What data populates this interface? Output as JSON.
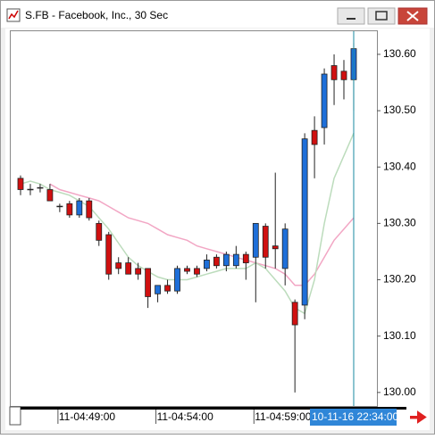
{
  "chart_data": {
    "type": "candlestick",
    "title": "S.FB - Facebook, Inc., 30 Sec",
    "categories": [
      null,
      null,
      null,
      null,
      "11-04:49:00",
      null,
      null,
      null,
      null,
      null,
      null,
      null,
      null,
      null,
      "11-04:54:00",
      null,
      null,
      null,
      null,
      null,
      null,
      null,
      null,
      null,
      "11-04:59:00",
      null,
      null,
      null,
      null,
      null,
      null,
      null,
      null,
      null,
      null
    ],
    "open": [
      130.38,
      130.36,
      130.363,
      130.36,
      130.33,
      130.335,
      130.315,
      130.34,
      130.3,
      130.28,
      130.23,
      130.23,
      130.22,
      130.22,
      130.175,
      130.19,
      130.18,
      130.22,
      130.22,
      130.22,
      130.24,
      130.225,
      130.225,
      130.245,
      130.24,
      130.295,
      130.26,
      130.22,
      130.16,
      130.155,
      130.465,
      130.47,
      130.58,
      130.57,
      130.555
    ],
    "high": [
      130.385,
      130.37,
      130.37,
      130.37,
      130.335,
      130.34,
      130.345,
      130.345,
      130.305,
      130.285,
      130.24,
      130.24,
      130.23,
      130.22,
      130.19,
      130.2,
      130.225,
      130.225,
      130.225,
      130.245,
      130.245,
      130.25,
      130.26,
      130.25,
      130.3,
      130.3,
      130.39,
      130.3,
      130.165,
      130.46,
      130.49,
      130.575,
      130.6,
      130.59,
      130.62
    ],
    "low": [
      130.35,
      130.35,
      130.355,
      130.34,
      130.32,
      130.31,
      130.31,
      130.305,
      130.26,
      130.2,
      130.21,
      130.21,
      130.2,
      130.15,
      130.16,
      130.175,
      130.175,
      130.21,
      130.205,
      130.215,
      130.22,
      130.215,
      130.22,
      130.2,
      130.16,
      130.22,
      130.22,
      130.19,
      130.0,
      130.13,
      130.38,
      130.44,
      130.51,
      130.52,
      130.5
    ],
    "close": [
      130.36,
      130.36,
      130.363,
      130.34,
      130.33,
      130.315,
      130.34,
      130.31,
      130.27,
      130.21,
      130.22,
      130.21,
      130.21,
      130.17,
      130.19,
      130.18,
      130.22,
      130.215,
      130.21,
      130.235,
      130.225,
      130.245,
      130.245,
      130.23,
      130.3,
      130.24,
      130.255,
      130.29,
      130.12,
      130.45,
      130.44,
      130.565,
      130.555,
      130.555,
      130.61
    ],
    "up_color": "#1e6fd9",
    "down_color": "#d01010",
    "series": [
      {
        "color": "#f2a6c4",
        "values": [
          null,
          null,
          null,
          130.37,
          130.36,
          130.355,
          130.35,
          130.345,
          130.34,
          130.33,
          130.32,
          130.31,
          130.305,
          130.3,
          130.29,
          130.28,
          130.275,
          130.27,
          130.26,
          130.255,
          130.25,
          130.245,
          130.24,
          130.235,
          130.23,
          130.225,
          130.22,
          130.21,
          130.19,
          130.19,
          130.21,
          130.24,
          130.27,
          130.29,
          130.31
        ]
      },
      {
        "color": "#bcdcbc",
        "values": [
          130.37,
          130.375,
          130.37,
          130.36,
          130.355,
          130.35,
          130.34,
          130.33,
          130.31,
          130.29,
          130.265,
          130.24,
          130.225,
          130.215,
          130.205,
          130.2,
          130.2,
          130.2,
          130.205,
          130.21,
          130.215,
          130.22,
          130.22,
          130.22,
          130.23,
          130.22,
          130.2,
          130.18,
          130.15,
          130.14,
          130.2,
          130.3,
          130.38,
          130.42,
          130.46
        ]
      }
    ],
    "ylim": [
      129.976,
      130.641
    ],
    "yticks": [
      {
        "value": 130.0,
        "label": "130.00"
      },
      {
        "value": 130.1,
        "label": "130.10"
      },
      {
        "value": 130.2,
        "label": "130.20"
      },
      {
        "value": 130.3,
        "label": "130.30"
      },
      {
        "value": 130.4,
        "label": "130.40"
      },
      {
        "value": 130.5,
        "label": "130.50"
      },
      {
        "value": 130.6,
        "label": "130.60"
      }
    ],
    "cursor_label": "10-11-16 22:34:00"
  }
}
